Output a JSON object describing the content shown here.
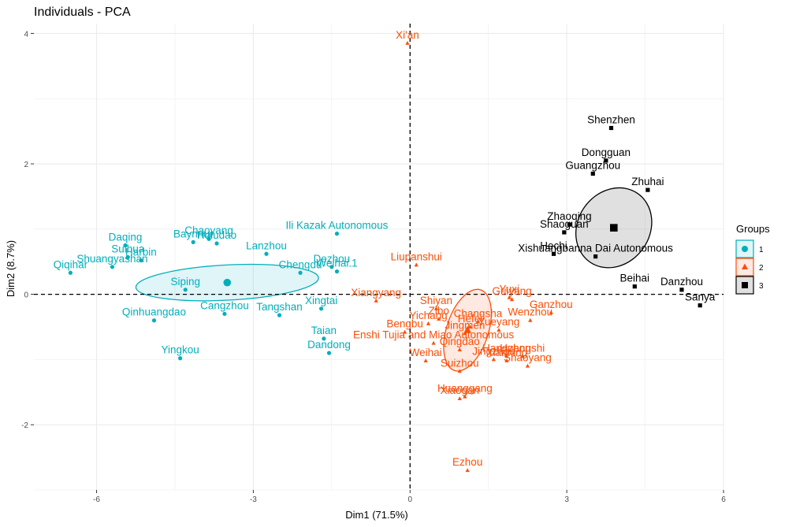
{
  "chart_data": {
    "type": "scatter",
    "title": "Individuals - PCA",
    "xlabel": "Dim1 (71.5%)",
    "ylabel": "Dim2 (8.7%)",
    "xlim": [
      -7.2,
      6.0
    ],
    "ylim": [
      -3.0,
      4.15
    ],
    "xticks": [
      -6,
      -3,
      0,
      3,
      6
    ],
    "yticks": [
      -2,
      0,
      2,
      4
    ],
    "grid": true,
    "legend": {
      "title": "Groups",
      "position": "right",
      "entries": [
        "1",
        "2",
        "3"
      ]
    },
    "groups": [
      {
        "name": "1",
        "color": "#00AFBB",
        "shape": "circle",
        "center": [
          -3.5,
          0.18
        ],
        "ellipse": {
          "rx": 1.75,
          "ry": 0.27,
          "angle": -3
        },
        "points": [
          {
            "label": "Qiqihar",
            "x": -6.5,
            "y": 0.33
          },
          {
            "label": "Shuangyashan",
            "x": -5.7,
            "y": 0.42
          },
          {
            "label": "Daqing",
            "x": -5.45,
            "y": 0.75
          },
          {
            "label": "Suihua",
            "x": -5.4,
            "y": 0.57
          },
          {
            "label": "Harbin",
            "x": -5.15,
            "y": 0.52
          },
          {
            "label": "Chaoyang",
            "x": -3.85,
            "y": 0.85
          },
          {
            "label": "Baynnur",
            "x": -4.15,
            "y": 0.8
          },
          {
            "label": "Huludao",
            "x": -3.7,
            "y": 0.78
          },
          {
            "label": "Siping",
            "x": -4.3,
            "y": 0.07
          },
          {
            "label": "Cangzhou",
            "x": -3.55,
            "y": -0.3
          },
          {
            "label": "Lanzhou",
            "x": -2.75,
            "y": 0.62
          },
          {
            "label": "Ili Kazak Autonomous",
            "x": -1.4,
            "y": 0.93
          },
          {
            "label": "Chengdu",
            "x": -2.1,
            "y": 0.33
          },
          {
            "label": "Dezhou",
            "x": -1.5,
            "y": 0.42
          },
          {
            "label": "Weihai.1",
            "x": -1.4,
            "y": 0.35
          },
          {
            "label": "Tangshan",
            "x": -2.5,
            "y": -0.32
          },
          {
            "label": "Xingtai",
            "x": -1.7,
            "y": -0.22
          },
          {
            "label": "Taian",
            "x": -1.65,
            "y": -0.68
          },
          {
            "label": "Qinhuangdao",
            "x": -4.9,
            "y": -0.4
          },
          {
            "label": "Dandong",
            "x": -1.55,
            "y": -0.9
          },
          {
            "label": "Yingkou",
            "x": -4.4,
            "y": -0.98
          }
        ]
      },
      {
        "name": "2",
        "color": "#FC4E07",
        "shape": "triangle",
        "center": [
          1.1,
          -0.55
        ],
        "ellipse": {
          "rx": 0.4,
          "ry": 0.65,
          "angle": 18
        },
        "points": [
          {
            "label": "Xi'an",
            "x": -0.05,
            "y": 3.85
          },
          {
            "label": "Liupanshui",
            "x": 0.12,
            "y": 0.45
          },
          {
            "label": "Shiyan",
            "x": 0.5,
            "y": -0.22
          },
          {
            "label": "Yuxi",
            "x": 1.9,
            "y": -0.05
          },
          {
            "label": "Guiyang",
            "x": 1.95,
            "y": -0.08
          },
          {
            "label": "Xiangyang",
            "x": -0.65,
            "y": -0.1
          },
          {
            "label": "Yichang",
            "x": 0.35,
            "y": -0.45
          },
          {
            "label": "Zibo",
            "x": 0.55,
            "y": -0.38
          },
          {
            "label": "Changsha",
            "x": 1.3,
            "y": -0.42
          },
          {
            "label": "Ganzhou",
            "x": 2.7,
            "y": -0.28
          },
          {
            "label": "Wenzhou",
            "x": 2.3,
            "y": -0.4
          },
          {
            "label": "Hefei",
            "x": 1.15,
            "y": -0.5
          },
          {
            "label": "Bengbu",
            "x": -0.1,
            "y": -0.58
          },
          {
            "label": "Jingmen",
            "x": 1.05,
            "y": -0.6
          },
          {
            "label": "Yueyang",
            "x": 1.7,
            "y": -0.55
          },
          {
            "label": "Enshi Tujia and Miao Autonomous",
            "x": 0.45,
            "y": -0.75
          },
          {
            "label": "Qingdao",
            "x": 0.95,
            "y": -0.85
          },
          {
            "label": "Hangzhou",
            "x": 1.85,
            "y": -0.95
          },
          {
            "label": "Weihai",
            "x": 0.3,
            "y": -1.02
          },
          {
            "label": "Jingzhou",
            "x": 1.6,
            "y": -1.0
          },
          {
            "label": "Huangshi",
            "x": 2.15,
            "y": -0.95
          },
          {
            "label": "Shaoyang",
            "x": 2.25,
            "y": -1.1
          },
          {
            "label": "Suizhou",
            "x": 0.95,
            "y": -1.18
          },
          {
            "label": "Xianning",
            "x": 1.85,
            "y": -1.02
          },
          {
            "label": "Xiaogan",
            "x": 0.95,
            "y": -1.6
          },
          {
            "label": "Huanggang",
            "x": 1.05,
            "y": -1.57
          },
          {
            "label": "Ezhou",
            "x": 1.1,
            "y": -2.7
          }
        ]
      },
      {
        "name": "3",
        "color": "#000000",
        "shape": "square",
        "center": [
          3.9,
          1.02
        ],
        "ellipse": {
          "rx": 0.8,
          "ry": 0.55,
          "angle": -55
        },
        "points": [
          {
            "label": "Shenzhen",
            "x": 3.85,
            "y": 2.55
          },
          {
            "label": "Dongguan",
            "x": 3.75,
            "y": 2.05
          },
          {
            "label": "Guangzhou",
            "x": 3.5,
            "y": 1.85
          },
          {
            "label": "Zhuhai",
            "x": 4.55,
            "y": 1.6
          },
          {
            "label": "Zhaoqing",
            "x": 3.05,
            "y": 1.07
          },
          {
            "label": "Shaoguan",
            "x": 2.95,
            "y": 0.95
          },
          {
            "label": "Hechi",
            "x": 2.75,
            "y": 0.62
          },
          {
            "label": "Xishuangbanna Dai Autonomous",
            "x": 3.55,
            "y": 0.58
          },
          {
            "label": "Beihai",
            "x": 4.3,
            "y": 0.12
          },
          {
            "label": "Danzhou",
            "x": 5.2,
            "y": 0.07
          },
          {
            "label": "Sanya",
            "x": 5.55,
            "y": -0.17
          }
        ]
      }
    ]
  }
}
